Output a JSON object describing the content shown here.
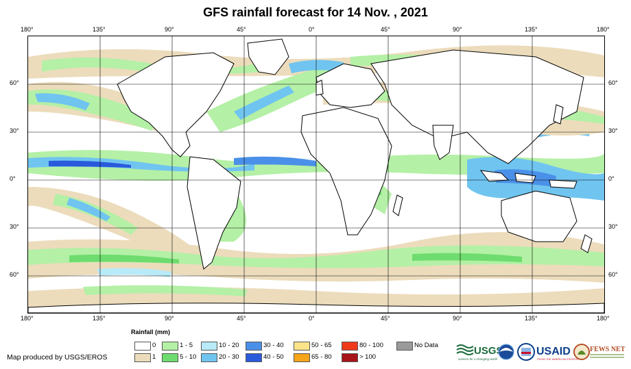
{
  "title": "GFS rainfall forecast for 14 Nov. , 2021",
  "lon_labels": [
    "180°",
    "135°",
    "90°",
    "45°",
    "0°",
    "45°",
    "90°",
    "135°",
    "180°"
  ],
  "lat_labels": [
    "60°",
    "30°",
    "0°",
    "30°",
    "60°"
  ],
  "legend": {
    "title": "Rainfall (mm)",
    "items": [
      {
        "label": "0",
        "color": "#ffffff"
      },
      {
        "label": "1",
        "color": "#ecdcbc"
      },
      {
        "label": "1 - 5",
        "color": "#b4f0a6"
      },
      {
        "label": "5 - 10",
        "color": "#6edc6e"
      },
      {
        "label": "10 - 20",
        "color": "#b8eaf8"
      },
      {
        "label": "20 - 30",
        "color": "#70c4f0"
      },
      {
        "label": "30 - 40",
        "color": "#4a90e8"
      },
      {
        "label": "40 - 50",
        "color": "#2a5adc"
      },
      {
        "label": "50 - 65",
        "color": "#fce48a"
      },
      {
        "label": "65 - 80",
        "color": "#f6a418"
      },
      {
        "label": "80 - 100",
        "color": "#f0381a"
      },
      {
        "label": "> 100",
        "color": "#a8141a"
      },
      {
        "label": "No Data",
        "color": "#9a9a9a"
      }
    ]
  },
  "credit": "Map produced by USGS/EROS",
  "logos": {
    "usgs": "USGS",
    "usgs_tagline": "science for a changing world",
    "usaid": "USAID",
    "usaid_tagline": "FROM THE AMERICAN PEOPLE",
    "fewsnet": "FEWS NET"
  }
}
